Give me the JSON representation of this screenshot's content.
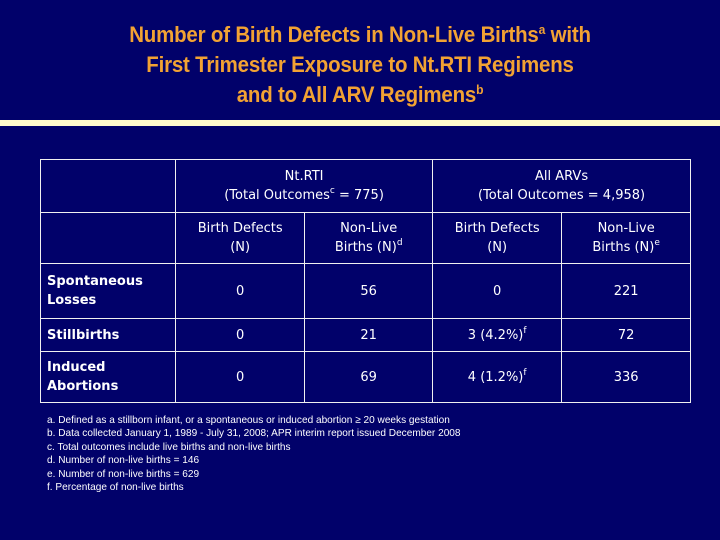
{
  "slide": {
    "title": {
      "line1_main": "Number of Birth Defects in Non-Live Births",
      "line1_sup": "a",
      "line1_tail": " with",
      "line2": "First Trimester Exposure to Nt.RTI Regimens",
      "line3_main": "and to All ARV Regimens",
      "line3_sup": "b"
    },
    "colors": {
      "background": "#01016a",
      "title": "#f2a233",
      "rule": "#fffbcc",
      "text": "#ffffff"
    }
  },
  "table": {
    "groups": [
      {
        "name": "Nt.RTI",
        "subtitle_main": "(Total Outcomes",
        "subtitle_sup": "c",
        "subtitle_tail": " = 775)"
      },
      {
        "name": "All ARVs",
        "subtitle_main": "(Total Outcomes = 4,958)",
        "subtitle_sup": "",
        "subtitle_tail": ""
      }
    ],
    "columns": [
      {
        "line1": "Birth Defects",
        "line2": "(N)",
        "sup": ""
      },
      {
        "line1": "Non-Live",
        "line2": "Births (N)",
        "sup": "d"
      },
      {
        "line1": "Birth Defects",
        "line2": "(N)",
        "sup": ""
      },
      {
        "line1": "Non-Live",
        "line2": "Births (N)",
        "sup": "e"
      }
    ],
    "rows": [
      {
        "label_line1": "Spontaneous",
        "label_line2": "Losses",
        "cells": [
          {
            "v": "0",
            "sup": ""
          },
          {
            "v": "56",
            "sup": ""
          },
          {
            "v": "0",
            "sup": ""
          },
          {
            "v": "221",
            "sup": ""
          }
        ]
      },
      {
        "label_line1": "Stillbirths",
        "label_line2": "",
        "cells": [
          {
            "v": "0",
            "sup": ""
          },
          {
            "v": "21",
            "sup": ""
          },
          {
            "v": "3 (4.2%)",
            "sup": "f"
          },
          {
            "v": "72",
            "sup": ""
          }
        ]
      },
      {
        "label_line1": "Induced",
        "label_line2": "Abortions",
        "cells": [
          {
            "v": "0",
            "sup": ""
          },
          {
            "v": "69",
            "sup": ""
          },
          {
            "v": "4 (1.2%)",
            "sup": "f"
          },
          {
            "v": "336",
            "sup": ""
          }
        ]
      }
    ]
  },
  "footnotes": [
    "a.  Defined as a stillborn infant, or a spontaneous or induced abortion ≥ 20 weeks gestation",
    "b.  Data collected January 1, 1989 - July 31, 2008; APR interim report issued December 2008",
    "c. Total outcomes include live births and non-live births",
    "d.  Number of non-live births = 146",
    "e.  Number of non-live births = 629",
    "f.  Percentage of non-live births"
  ]
}
